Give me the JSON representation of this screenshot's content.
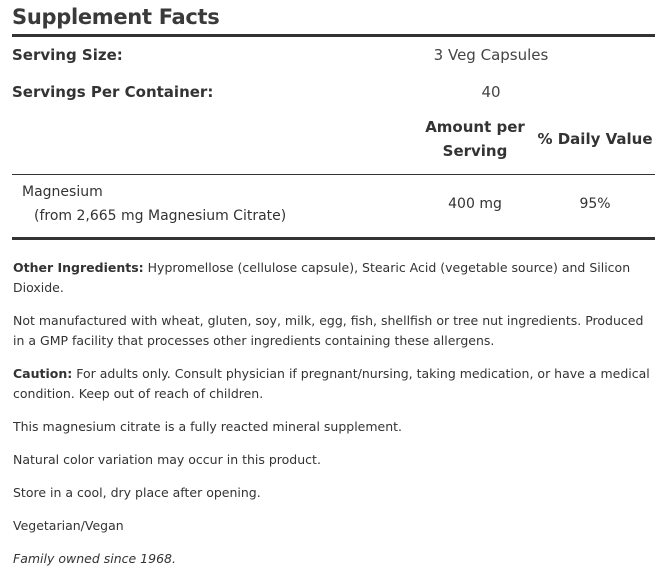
{
  "title": "Supplement Facts",
  "serving_size": {
    "label": "Serving Size:",
    "value": "3 Veg Capsules"
  },
  "servings_per_container": {
    "label": "Servings Per Container:",
    "value": "40"
  },
  "columns": {
    "amount": "Amount per Serving",
    "daily_value": "% Daily Value"
  },
  "nutrients": [
    {
      "name": "Magnesium",
      "sub": "(from 2,665 mg Magnesium Citrate)",
      "amount": "400 mg",
      "daily_value": "95%"
    }
  ],
  "notes": {
    "other_ingredients_label": "Other Ingredients:",
    "other_ingredients_text": "Hypromellose (cellulose capsule), Stearic Acid (vegetable source) and Silicon Dioxide.",
    "allergens": "Not manufactured with wheat, gluten, soy, milk, egg, fish, shellfish or tree nut ingredients. Produced in a GMP facility that processes other ingredients containing these allergens.",
    "caution_label": "Caution:",
    "caution_text": "For adults only. Consult physician if pregnant/nursing, taking medication, or have a medical condition. Keep out of reach of children.",
    "reacted": "This magnesium citrate is a fully reacted mineral supplement.",
    "color_variation": "Natural color variation may occur in this product.",
    "storage": "Store in a cool, dry place after opening.",
    "diet": "Vegetarian/Vegan",
    "family": "Family owned since 1968."
  }
}
